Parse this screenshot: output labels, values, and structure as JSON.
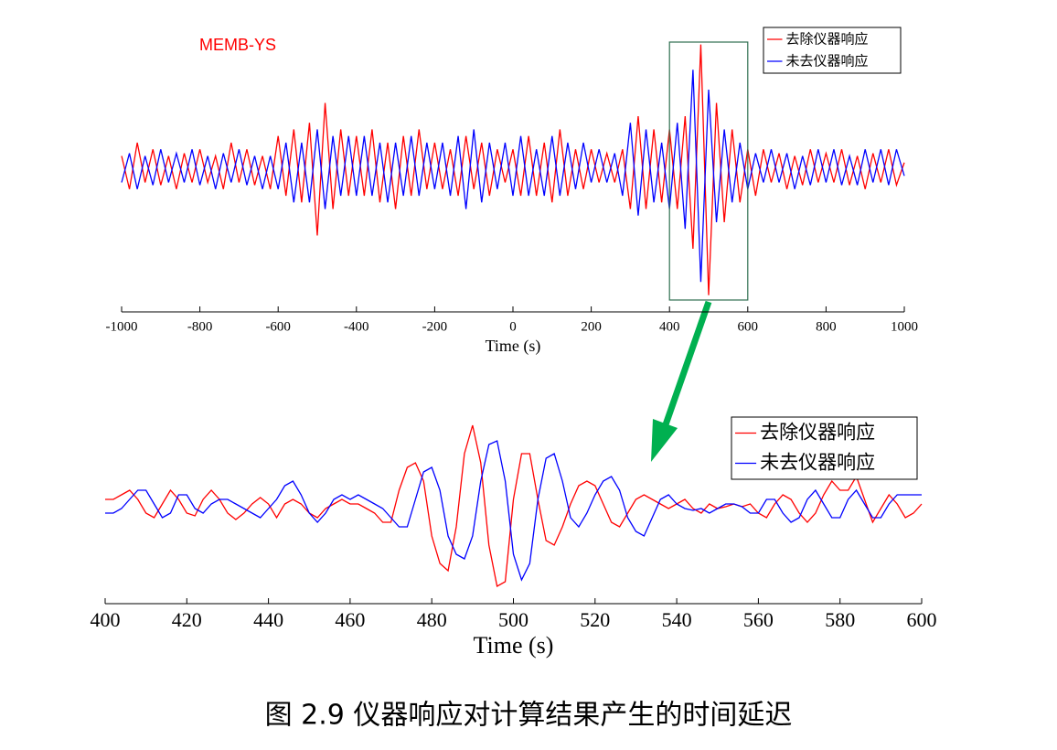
{
  "chart_data": [
    {
      "type": "line",
      "annotation": "MEMB-YS",
      "xlabel": "Time (s)",
      "legend": "upper right",
      "xlim": [
        -1000,
        1000
      ],
      "xticks": [
        -1000,
        -800,
        -600,
        -400,
        -200,
        0,
        200,
        400,
        600,
        800,
        1000
      ],
      "ylim": [
        -1,
        1
      ],
      "x": [
        -1000,
        -980,
        -960,
        -940,
        -920,
        -900,
        -880,
        -860,
        -840,
        -820,
        -800,
        -780,
        -760,
        -740,
        -720,
        -700,
        -680,
        -660,
        -640,
        -620,
        -600,
        -580,
        -560,
        -540,
        -520,
        -500,
        -480,
        -460,
        -440,
        -420,
        -400,
        -380,
        -360,
        -340,
        -320,
        -300,
        -280,
        -260,
        -240,
        -220,
        -200,
        -180,
        -160,
        -140,
        -120,
        -100,
        -80,
        -60,
        -40,
        -20,
        0,
        20,
        40,
        60,
        80,
        100,
        120,
        140,
        160,
        180,
        200,
        220,
        240,
        260,
        280,
        300,
        320,
        340,
        360,
        380,
        400,
        420,
        440,
        460,
        480,
        500,
        520,
        540,
        560,
        580,
        600,
        620,
        640,
        660,
        680,
        700,
        720,
        740,
        760,
        780,
        800,
        820,
        840,
        860,
        880,
        900,
        920,
        940,
        960,
        980,
        1000
      ],
      "series": [
        {
          "name": "去除仪器响应",
          "color": "#ff0000",
          "values": [
            0.1,
            -0.15,
            0.2,
            -0.1,
            0.15,
            -0.12,
            0.1,
            -0.15,
            0.12,
            -0.1,
            0.15,
            -0.1,
            0.1,
            -0.15,
            0.2,
            -0.1,
            0.15,
            -0.12,
            0.1,
            -0.15,
            0.25,
            -0.2,
            0.3,
            -0.25,
            0.35,
            -0.5,
            0.5,
            -0.3,
            0.3,
            -0.2,
            0.25,
            -0.2,
            0.3,
            -0.25,
            0.2,
            -0.3,
            0.25,
            -0.2,
            0.3,
            -0.15,
            0.2,
            -0.15,
            0.15,
            -0.2,
            0.25,
            -0.15,
            0.2,
            -0.2,
            0.15,
            -0.1,
            0.15,
            -0.2,
            0.25,
            -0.2,
            0.2,
            -0.25,
            0.3,
            -0.2,
            0.15,
            -0.15,
            0.15,
            -0.1,
            0.12,
            -0.1,
            0.15,
            -0.3,
            0.4,
            -0.3,
            0.3,
            -0.25,
            0.3,
            -0.3,
            0.4,
            -0.6,
            0.94,
            -0.95,
            0.5,
            -0.4,
            0.3,
            -0.25,
            0.15,
            -0.2,
            0.15,
            -0.1,
            0.12,
            -0.15,
            0.1,
            -0.12,
            0.15,
            -0.1,
            0.12,
            -0.1,
            0.15,
            -0.12,
            0.1,
            -0.15,
            0.12,
            -0.1,
            0.15,
            -0.12,
            0.05
          ]
        },
        {
          "name": "未去仪器响应",
          "color": "#0000ff",
          "values": [
            -0.1,
            0.12,
            -0.15,
            0.1,
            -0.12,
            0.15,
            -0.1,
            0.12,
            -0.1,
            0.15,
            -0.12,
            0.1,
            -0.15,
            0.12,
            -0.1,
            0.15,
            -0.12,
            0.1,
            -0.15,
            0.1,
            -0.15,
            0.2,
            -0.25,
            0.2,
            -0.25,
            0.3,
            -0.3,
            0.25,
            -0.2,
            0.25,
            -0.2,
            0.25,
            -0.2,
            0.2,
            -0.25,
            0.2,
            -0.2,
            0.25,
            -0.2,
            0.2,
            -0.15,
            0.2,
            -0.2,
            0.25,
            -0.3,
            0.3,
            -0.25,
            0.2,
            -0.15,
            0.2,
            -0.2,
            0.25,
            -0.2,
            0.15,
            -0.2,
            0.25,
            -0.2,
            0.2,
            -0.15,
            0.2,
            -0.1,
            0.15,
            -0.1,
            0.12,
            -0.2,
            0.35,
            -0.35,
            0.3,
            -0.25,
            0.2,
            -0.3,
            0.35,
            -0.45,
            0.75,
            -0.85,
            0.6,
            -0.4,
            0.3,
            -0.25,
            0.2,
            -0.15,
            0.12,
            -0.1,
            0.15,
            -0.1,
            0.12,
            -0.15,
            0.1,
            -0.12,
            0.15,
            -0.1,
            0.15,
            -0.12,
            0.1,
            -0.12,
            0.15,
            -0.1,
            0.15,
            -0.12,
            0.15,
            -0.05
          ]
        }
      ]
    },
    {
      "type": "line",
      "xlabel": "Time (s)",
      "legend": "upper right",
      "xlim": [
        400,
        600
      ],
      "xticks": [
        400,
        420,
        440,
        460,
        480,
        500,
        520,
        540,
        560,
        580,
        600
      ],
      "ylim": [
        -1,
        1
      ],
      "x": [
        400,
        402,
        404,
        406,
        408,
        410,
        412,
        414,
        416,
        418,
        420,
        422,
        424,
        426,
        428,
        430,
        432,
        434,
        436,
        438,
        440,
        442,
        444,
        446,
        448,
        450,
        452,
        454,
        456,
        458,
        460,
        462,
        464,
        466,
        468,
        470,
        472,
        474,
        476,
        478,
        480,
        482,
        484,
        486,
        488,
        490,
        492,
        494,
        496,
        498,
        500,
        502,
        504,
        506,
        508,
        510,
        512,
        514,
        516,
        518,
        520,
        522,
        524,
        526,
        528,
        530,
        532,
        534,
        536,
        538,
        540,
        542,
        544,
        546,
        548,
        550,
        552,
        554,
        556,
        558,
        560,
        562,
        564,
        566,
        568,
        570,
        572,
        574,
        576,
        578,
        580,
        582,
        584,
        586,
        588,
        590,
        592,
        594,
        596,
        598,
        600
      ],
      "series": [
        {
          "name": "去除仪器响应",
          "color": "#ff0000",
          "values": [
            0.1,
            0.1,
            0.15,
            0.2,
            0.1,
            -0.05,
            -0.1,
            0.05,
            0.2,
            0.1,
            -0.05,
            -0.08,
            0.1,
            0.2,
            0.1,
            -0.05,
            -0.12,
            -0.05,
            0.05,
            0.12,
            0.05,
            -0.1,
            0.05,
            0.1,
            0.05,
            -0.05,
            -0.1,
            0,
            0.05,
            0.1,
            0.05,
            0.05,
            0,
            -0.05,
            -0.15,
            -0.15,
            0.2,
            0.45,
            0.5,
            0.3,
            -0.3,
            -0.6,
            -0.68,
            -0.2,
            0.6,
            0.91,
            0.5,
            -0.4,
            -0.85,
            -0.8,
            0.1,
            0.6,
            0.6,
            0.1,
            -0.35,
            -0.4,
            -0.2,
            0.05,
            0.25,
            0.3,
            0.25,
            0.05,
            -0.15,
            -0.2,
            -0.05,
            0.1,
            0.15,
            0.1,
            0.05,
            0,
            0.05,
            0.1,
            0,
            -0.05,
            0.05,
            0,
            0.02,
            0.05,
            0.02,
            0.05,
            -0.05,
            -0.1,
            0.05,
            0.15,
            0.1,
            -0.05,
            -0.15,
            -0.05,
            0.15,
            0.3,
            0.2,
            0.2,
            0.35,
            0.1,
            -0.15,
            0,
            0.15,
            0.05,
            -0.1,
            -0.05,
            0.05
          ]
        },
        {
          "name": "未去仪器响应",
          "color": "#0000ff",
          "values": [
            -0.05,
            -0.05,
            0,
            0.1,
            0.2,
            0.2,
            0.05,
            -0.1,
            -0.05,
            0.15,
            0.15,
            0,
            -0.05,
            0.05,
            0.1,
            0.1,
            0.05,
            0,
            -0.05,
            -0.1,
            0,
            0.1,
            0.25,
            0.3,
            0.15,
            -0.05,
            -0.15,
            -0.05,
            0.1,
            0.15,
            0.1,
            0.15,
            0.1,
            0.05,
            0,
            -0.1,
            -0.2,
            -0.2,
            0.1,
            0.4,
            0.45,
            0.2,
            -0.3,
            -0.5,
            -0.55,
            -0.3,
            0.3,
            0.7,
            0.74,
            0.3,
            -0.5,
            -0.78,
            -0.6,
            0.1,
            0.55,
            0.6,
            0.3,
            -0.1,
            -0.2,
            -0.05,
            0.15,
            0.3,
            0.35,
            0.2,
            -0.1,
            -0.25,
            -0.3,
            -0.1,
            0.1,
            0.15,
            0.05,
            0,
            -0.02,
            0,
            -0.05,
            0,
            0.05,
            0.05,
            0.02,
            -0.05,
            -0.05,
            0.1,
            0.1,
            -0.05,
            -0.15,
            -0.1,
            0.1,
            0.2,
            0.05,
            -0.1,
            -0.1,
            0.1,
            0.2,
            0.05,
            -0.1,
            -0.1,
            0.05,
            0.15,
            0.15,
            0.15,
            0.15
          ]
        }
      ]
    }
  ],
  "caption": "图 2.9 仪器响应对计算结果产生的时间延迟"
}
